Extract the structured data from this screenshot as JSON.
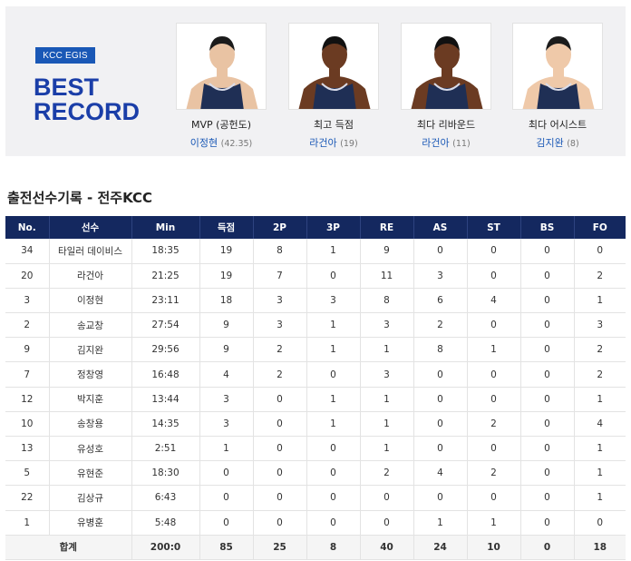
{
  "best_record": {
    "badge": "KCC EGIS",
    "title_line1": "BEST",
    "title_line2": "RECORD",
    "cards": [
      {
        "caption": "MVP (공헌도)",
        "player": "이정현",
        "value": "(42.35)",
        "skin": "#e9c3a3",
        "hair": "#1b1b1b"
      },
      {
        "caption": "최고 득점",
        "player": "라건아",
        "value": "(19)",
        "skin": "#6b3b22",
        "hair": "#111111"
      },
      {
        "caption": "최다 리바운드",
        "player": "라건아",
        "value": "(11)",
        "skin": "#6b3b22",
        "hair": "#111111"
      },
      {
        "caption": "최다 어시스트",
        "player": "김지완",
        "value": "(8)",
        "skin": "#efc9a9",
        "hair": "#1b1b1b"
      }
    ]
  },
  "section_title": "출전선수기록 - 전주KCC",
  "table": {
    "headers": [
      "No.",
      "선수",
      "Min",
      "득점",
      "2P",
      "3P",
      "RE",
      "AS",
      "ST",
      "BS",
      "FO"
    ],
    "rows": [
      [
        "34",
        "타일러 데이비스",
        "18:35",
        "19",
        "8",
        "1",
        "9",
        "0",
        "0",
        "0",
        "0"
      ],
      [
        "20",
        "라건아",
        "21:25",
        "19",
        "7",
        "0",
        "11",
        "3",
        "0",
        "0",
        "2"
      ],
      [
        "3",
        "이정현",
        "23:11",
        "18",
        "3",
        "3",
        "8",
        "6",
        "4",
        "0",
        "1"
      ],
      [
        "2",
        "송교창",
        "27:54",
        "9",
        "3",
        "1",
        "3",
        "2",
        "0",
        "0",
        "3"
      ],
      [
        "9",
        "김지완",
        "29:56",
        "9",
        "2",
        "1",
        "1",
        "8",
        "1",
        "0",
        "2"
      ],
      [
        "7",
        "정창영",
        "16:48",
        "4",
        "2",
        "0",
        "3",
        "0",
        "0",
        "0",
        "2"
      ],
      [
        "12",
        "박지훈",
        "13:44",
        "3",
        "0",
        "1",
        "1",
        "0",
        "0",
        "0",
        "1"
      ],
      [
        "10",
        "송창용",
        "14:35",
        "3",
        "0",
        "1",
        "1",
        "0",
        "2",
        "0",
        "4"
      ],
      [
        "13",
        "유성호",
        "2:51",
        "1",
        "0",
        "0",
        "1",
        "0",
        "0",
        "0",
        "1"
      ],
      [
        "5",
        "유현준",
        "18:30",
        "0",
        "0",
        "0",
        "2",
        "4",
        "2",
        "0",
        "1"
      ],
      [
        "22",
        "김상규",
        "6:43",
        "0",
        "0",
        "0",
        "0",
        "0",
        "0",
        "0",
        "1"
      ],
      [
        "1",
        "유병훈",
        "5:48",
        "0",
        "0",
        "0",
        "0",
        "1",
        "1",
        "0",
        "0"
      ]
    ],
    "total": [
      "합계",
      "200:0",
      "85",
      "25",
      "8",
      "40",
      "24",
      "10",
      "0",
      "18"
    ]
  }
}
